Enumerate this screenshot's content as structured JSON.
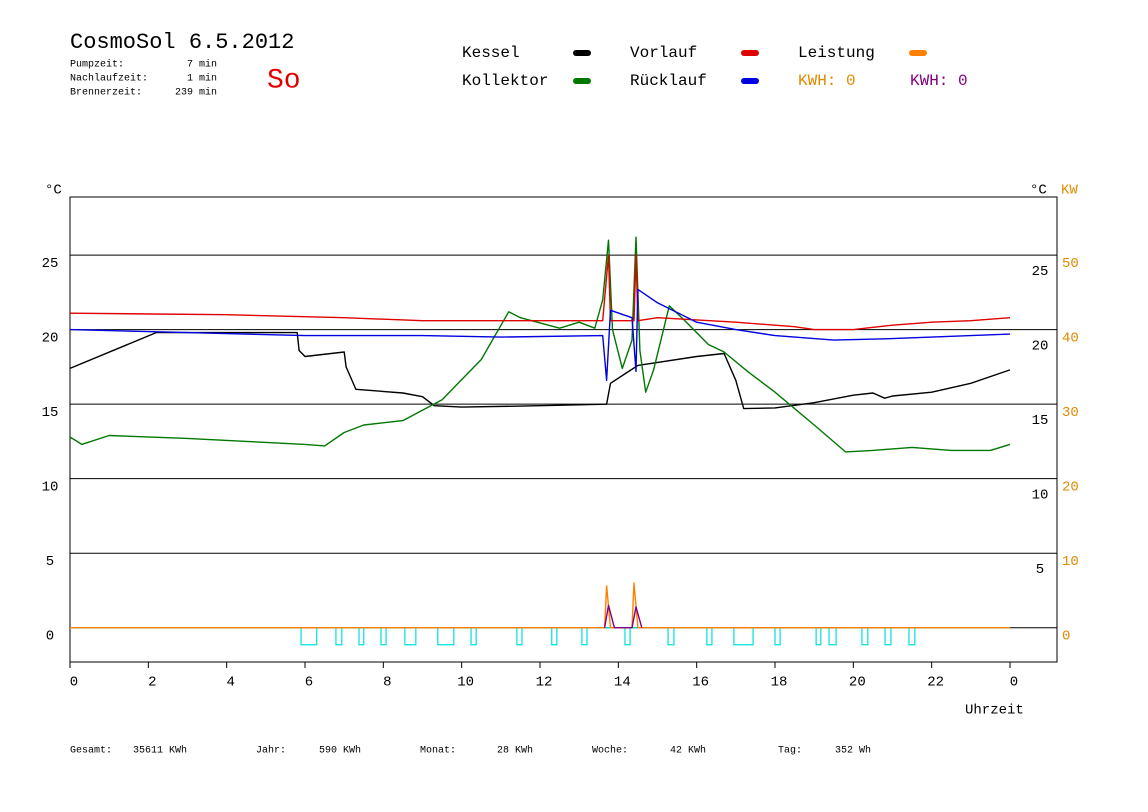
{
  "chart_data": {
    "type": "line",
    "title": "CosmoSol 6.5.2012",
    "day": "So",
    "info": [
      {
        "label": "Pumpzeit:",
        "value": "7 min"
      },
      {
        "label": "Nachlaufzeit:",
        "value": "1 min"
      },
      {
        "label": "Brennerzeit:",
        "value": "239 min"
      }
    ],
    "kwh_labels": [
      {
        "text": "KWH: 0",
        "color": "#e08a00"
      },
      {
        "text": "KWH: 0",
        "color": "#800080"
      }
    ],
    "stats": [
      {
        "label": "Gesamt:",
        "value": "35611 KWh"
      },
      {
        "label": "Jahr:",
        "value": "590 KWh"
      },
      {
        "label": "Monat:",
        "value": "28 KWh"
      },
      {
        "label": "Woche:",
        "value": "42 KWh"
      },
      {
        "label": "Tag:",
        "value": "352 Wh"
      }
    ],
    "y_label": "°C",
    "y_right_label": "°C",
    "y2_label": "KW",
    "x_label": "Uhrzeit",
    "xlim": [
      0,
      24
    ],
    "xticks": [
      0,
      2,
      4,
      6,
      8,
      10,
      12,
      14,
      16,
      18,
      20,
      22,
      {
        "value": 24,
        "label": "0"
      }
    ],
    "ylim": [
      -2.3,
      28.9
    ],
    "yticks": [
      0,
      5,
      10,
      15,
      20,
      25
    ],
    "y_right_ticks": [
      5,
      10,
      15,
      20,
      25
    ],
    "y2lim": [
      -4.6,
      57.8
    ],
    "y2ticks": [
      0,
      10,
      20,
      30,
      40,
      50
    ],
    "grid": true,
    "series": [
      {
        "name": "Kessel",
        "color": "#000000",
        "x": [
          0,
          2.2,
          5.8,
          5.85,
          6,
          7,
          7.05,
          7.3,
          8.5,
          9,
          9.3,
          10,
          12,
          13.7,
          13.8,
          14.5,
          16,
          16.7,
          17,
          17.2,
          18,
          19,
          20,
          20.5,
          20.8,
          21,
          22,
          23,
          24
        ],
        "values": [
          17.4,
          19.8,
          19.8,
          18.6,
          18.2,
          18.5,
          17.5,
          16.0,
          15.75,
          15.5,
          14.9,
          14.8,
          14.9,
          15.0,
          16.4,
          17.6,
          18.2,
          18.4,
          16.6,
          14.7,
          14.75,
          15.1,
          15.6,
          15.75,
          15.4,
          15.55,
          15.8,
          16.4,
          17.3
        ]
      },
      {
        "name": "Kollektor",
        "color": "#007800",
        "x": [
          0,
          0.3,
          1,
          3,
          4.5,
          6,
          6.5,
          7,
          7.5,
          8.5,
          9.5,
          10.5,
          11.2,
          11.5,
          12.5,
          13,
          13.4,
          13.6,
          13.75,
          13.85,
          14.1,
          14.35,
          14.45,
          14.55,
          14.7,
          14.9,
          15.3,
          15.7,
          16.3,
          16.7,
          17.3,
          18,
          19,
          19.8,
          20.5,
          21.5,
          22.5,
          23.5,
          24
        ],
        "values": [
          12.8,
          12.3,
          12.9,
          12.7,
          12.5,
          12.3,
          12.2,
          13.1,
          13.6,
          13.9,
          15.3,
          18.0,
          21.2,
          20.8,
          20.1,
          20.5,
          20.1,
          22.0,
          26.0,
          20.0,
          17.4,
          19.3,
          26.2,
          18.6,
          15.8,
          17.3,
          21.6,
          20.6,
          19.0,
          18.5,
          17.2,
          15.8,
          13.6,
          11.8,
          11.9,
          12.1,
          11.9,
          11.9,
          12.3
        ]
      },
      {
        "name": "Vorlauf",
        "color": "#e00000",
        "x": [
          0,
          4,
          7,
          9,
          12,
          13.6,
          13.75,
          13.8,
          14.4,
          14.45,
          14.5,
          15,
          17,
          18.5,
          19,
          20,
          21,
          22,
          23,
          24
        ],
        "values": [
          21.1,
          21.0,
          20.8,
          20.6,
          20.6,
          20.6,
          25.0,
          20.6,
          20.6,
          25.0,
          20.6,
          20.8,
          20.5,
          20.2,
          20.0,
          20.0,
          20.3,
          20.5,
          20.6,
          20.8
        ]
      },
      {
        "name": "Rücklauf",
        "color": "#0000e0",
        "x": [
          0,
          3,
          6,
          9,
          11,
          13.6,
          13.7,
          13.8,
          14.35,
          14.45,
          14.5,
          15,
          16,
          17,
          18,
          19.5,
          21,
          24
        ],
        "values": [
          20.0,
          19.8,
          19.6,
          19.6,
          19.5,
          19.6,
          16.6,
          21.3,
          20.8,
          17.2,
          22.7,
          21.8,
          20.5,
          20.0,
          19.6,
          19.3,
          19.4,
          19.7
        ]
      },
      {
        "name": "Leistung",
        "color": "#ff8000",
        "axis": "y2",
        "x": [
          0,
          13.65,
          13.7,
          13.8,
          14.35,
          14.4,
          14.5,
          24
        ],
        "values": [
          0,
          0,
          5.6,
          0,
          0,
          6.0,
          0,
          0
        ]
      },
      {
        "color": "#800080",
        "axis": "y2",
        "x": [
          13.65,
          13.75,
          13.9,
          14.35,
          14.45,
          14.6
        ],
        "values": [
          0,
          3.0,
          0,
          0,
          2.8,
          0
        ]
      }
    ],
    "pump": {
      "color": "#00e0e0",
      "intervals": [
        [
          5.9,
          6.3
        ],
        [
          6.79,
          6.94
        ],
        [
          7.38,
          7.5
        ],
        [
          7.94,
          8.07
        ],
        [
          8.55,
          8.83
        ],
        [
          9.39,
          9.8
        ],
        [
          10.24,
          10.37
        ],
        [
          11.41,
          11.54
        ],
        [
          12.3,
          12.43
        ],
        [
          13.07,
          13.2
        ],
        [
          14.17,
          14.3
        ],
        [
          15.27,
          15.42
        ],
        [
          16.26,
          16.39
        ],
        [
          16.95,
          17.44
        ],
        [
          18.0,
          18.13
        ],
        [
          19.05,
          19.17
        ],
        [
          19.38,
          19.56
        ],
        [
          20.22,
          20.37
        ],
        [
          20.81,
          20.96
        ],
        [
          21.42,
          21.57
        ]
      ]
    }
  }
}
